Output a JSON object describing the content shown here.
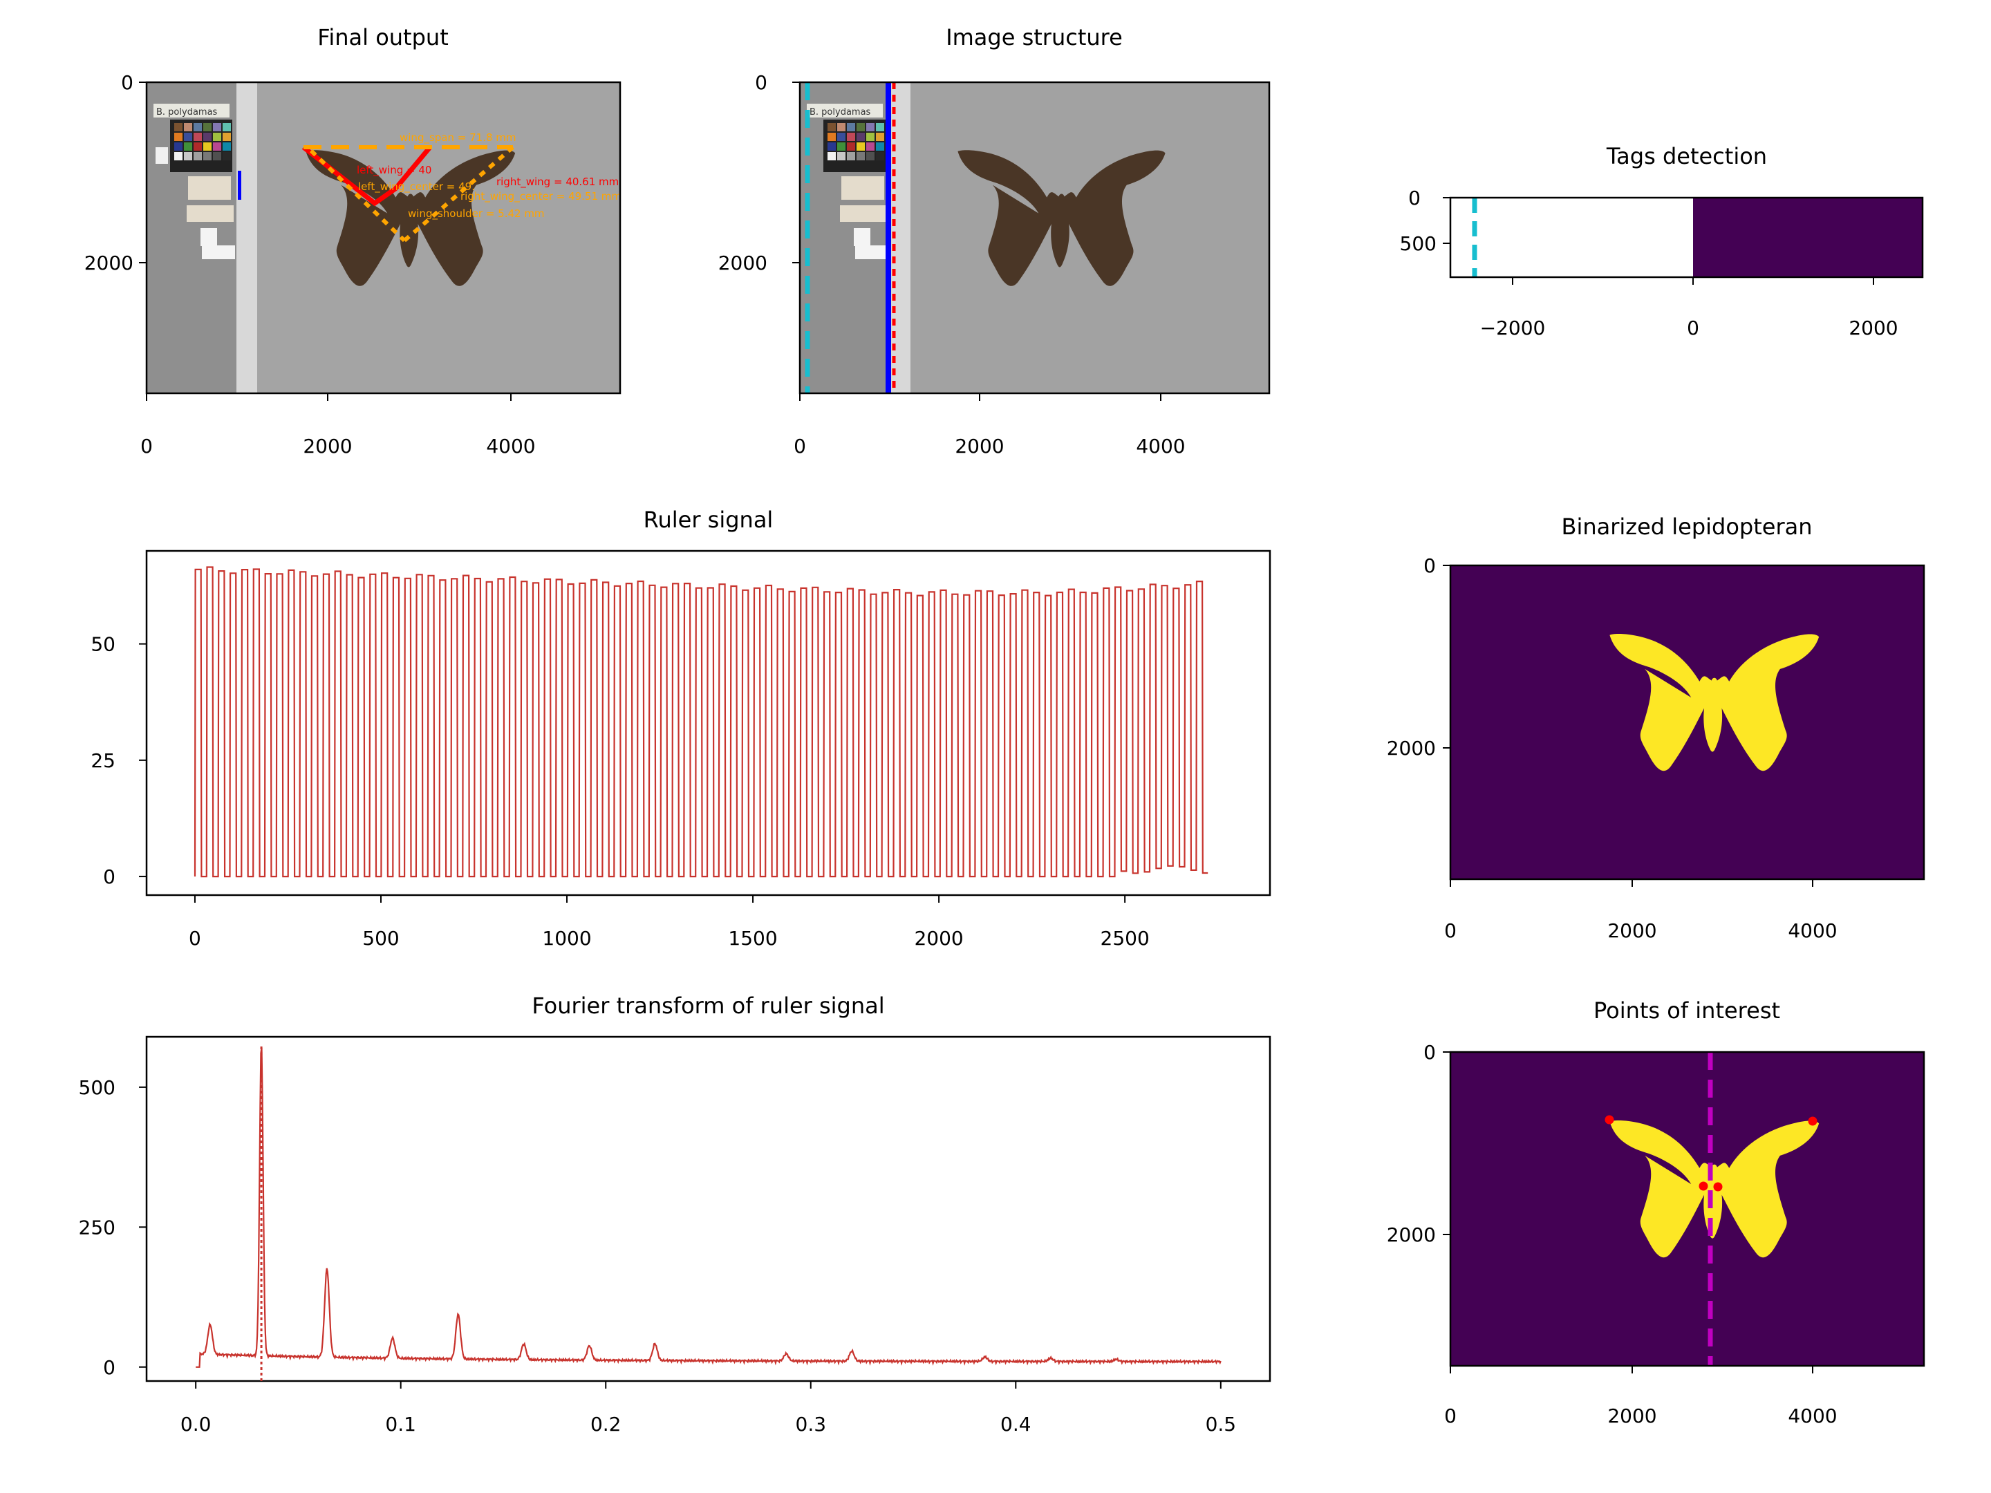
{
  "figure": {
    "panels": {
      "final_output": {
        "title": "Final output",
        "x_ticks": [
          "0",
          "2000",
          "4000"
        ],
        "y_ticks": [
          "0",
          "2000"
        ],
        "annotations": [
          "wing_span = 71.8 mm",
          "left_wing = 40",
          "right_wing = 40.61 mm",
          "left_wing_center = 49.",
          "right_wing_center = 49.51 mm",
          "wing_shoulder = 5.42 mm"
        ],
        "label_text": "B. polydamas"
      },
      "image_structure": {
        "title": "Image structure",
        "x_ticks": [
          "0",
          "2000",
          "4000"
        ],
        "y_ticks": [
          "0",
          "2000"
        ],
        "label_text": "B. polydamas"
      },
      "tags_detection": {
        "title": "Tags detection",
        "x_ticks": [
          "−2000",
          "0",
          "2000"
        ],
        "y_ticks": [
          "0",
          "500"
        ]
      },
      "binarized": {
        "title": "Binarized lepidopteran",
        "x_ticks": [
          "0",
          "2000",
          "4000"
        ],
        "y_ticks": [
          "0",
          "2000"
        ]
      },
      "points_of_interest": {
        "title": "Points of interest",
        "x_ticks": [
          "0",
          "2000",
          "4000"
        ],
        "y_ticks": [
          "0",
          "2000"
        ]
      }
    },
    "colors": {
      "signal": "#c8332d",
      "viridis_dark": "#440154",
      "viridis_yellow": "#fde725",
      "cyan": "#17becf",
      "magenta": "#c000c0",
      "orange": "#ffa500",
      "red": "#ff0000",
      "blue": "#0000ff"
    }
  },
  "chart_data": [
    {
      "id": "ruler_signal",
      "type": "line",
      "title": "Ruler signal",
      "xlim": [
        -130,
        2890
      ],
      "ylim": [
        -4,
        70
      ],
      "x_ticks": [
        0,
        500,
        1000,
        1500,
        2000,
        2500
      ],
      "y_ticks": [
        0,
        25,
        50
      ],
      "series": [
        {
          "kind": "square_wave",
          "x_start": 0,
          "x_end": 2750,
          "period": 31.3,
          "low": 0,
          "high_start": 66,
          "high_min": 61,
          "high_end": 63
        }
      ]
    },
    {
      "id": "fourier_transform",
      "type": "line",
      "title": "Fourier transform of ruler signal",
      "xlim": [
        -0.024,
        0.524
      ],
      "ylim": [
        -25,
        590
      ],
      "x_ticks": [
        0.0,
        0.1,
        0.2,
        0.3,
        0.4,
        0.5
      ],
      "y_ticks": [
        0,
        250,
        500
      ],
      "peaks": [
        {
          "x": 0.007,
          "y": 65
        },
        {
          "x": 0.032,
          "y": 570
        },
        {
          "x": 0.064,
          "y": 170
        },
        {
          "x": 0.096,
          "y": 48
        },
        {
          "x": 0.128,
          "y": 92
        },
        {
          "x": 0.16,
          "y": 40
        },
        {
          "x": 0.192,
          "y": 38
        },
        {
          "x": 0.224,
          "y": 42
        },
        {
          "x": 0.288,
          "y": 25
        },
        {
          "x": 0.32,
          "y": 30
        },
        {
          "x": 0.385,
          "y": 20
        },
        {
          "x": 0.417,
          "y": 18
        },
        {
          "x": 0.449,
          "y": 16
        }
      ],
      "marker_line_x": 0.032
    }
  ]
}
